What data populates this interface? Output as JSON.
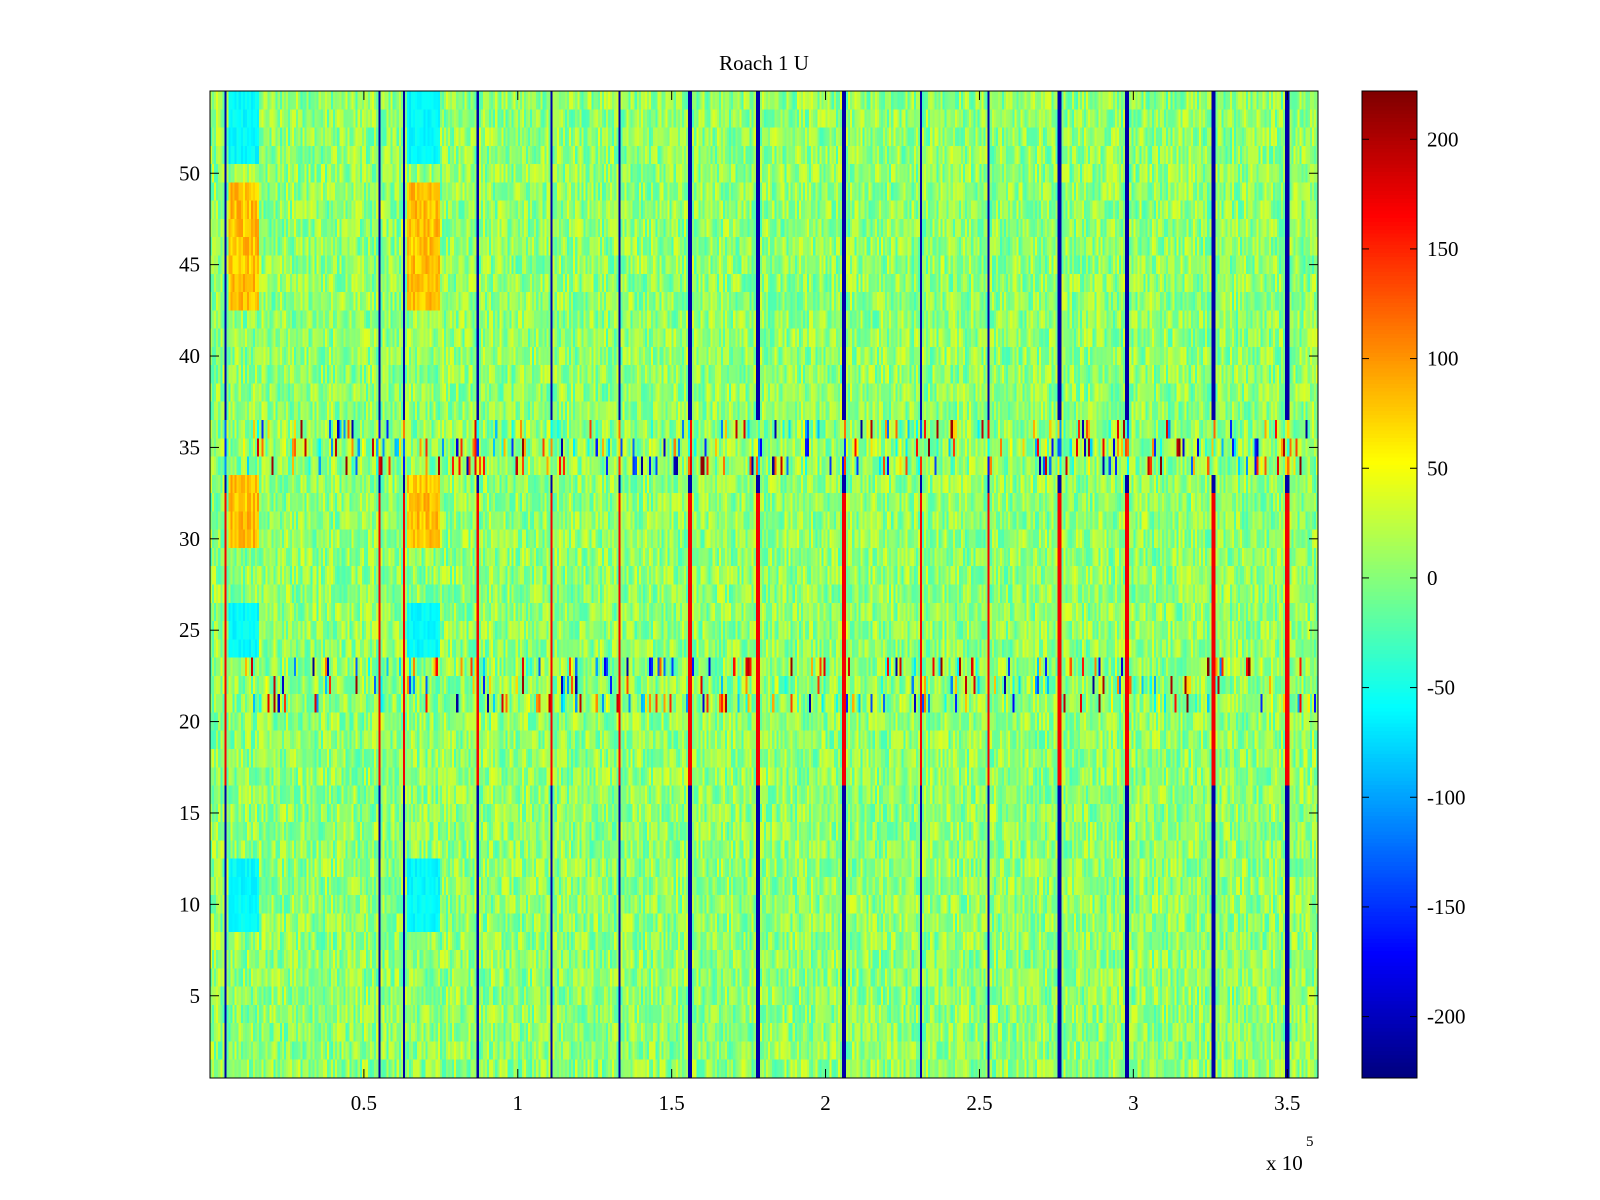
{
  "chart_data": {
    "type": "heatmap",
    "title": "Roach 1 U",
    "xlabel": "",
    "ylabel": "",
    "x_multiplier": "x 10",
    "x_multiplier_exponent": "5",
    "xlim": [
      0,
      3.6
    ],
    "ylim": [
      0.5,
      54.5
    ],
    "xticks": [
      {
        "value": 0.5,
        "label": "0.5"
      },
      {
        "value": 1,
        "label": "1"
      },
      {
        "value": 1.5,
        "label": "1.5"
      },
      {
        "value": 2,
        "label": "2"
      },
      {
        "value": 2.5,
        "label": "2.5"
      },
      {
        "value": 3,
        "label": "3"
      },
      {
        "value": 3.5,
        "label": "3.5"
      }
    ],
    "yticks": [
      {
        "value": 5,
        "label": "5"
      },
      {
        "value": 10,
        "label": "10"
      },
      {
        "value": 15,
        "label": "15"
      },
      {
        "value": 20,
        "label": "20"
      },
      {
        "value": 25,
        "label": "25"
      },
      {
        "value": 30,
        "label": "30"
      },
      {
        "value": 35,
        "label": "35"
      },
      {
        "value": 40,
        "label": "40"
      },
      {
        "value": 45,
        "label": "45"
      },
      {
        "value": 50,
        "label": "50"
      }
    ],
    "colorbar": {
      "colormap": "jet",
      "range": [
        -228,
        222
      ],
      "ticks": [
        {
          "value": 200,
          "label": "200"
        },
        {
          "value": 150,
          "label": "150"
        },
        {
          "value": 100,
          "label": "100"
        },
        {
          "value": 50,
          "label": "50"
        },
        {
          "value": 0,
          "label": "0"
        },
        {
          "value": -50,
          "label": "-50"
        },
        {
          "value": -100,
          "label": "-100"
        },
        {
          "value": -150,
          "label": "-150"
        },
        {
          "value": -200,
          "label": "-200"
        }
      ]
    },
    "event_columns_x": [
      0.05,
      0.55,
      0.63,
      0.87,
      1.11,
      1.33,
      1.56,
      1.78,
      2.06,
      2.31,
      2.53,
      2.76,
      2.98,
      3.26,
      3.5
    ],
    "noise_rows": [
      21,
      22,
      23,
      34,
      35,
      36
    ],
    "grid": false
  }
}
